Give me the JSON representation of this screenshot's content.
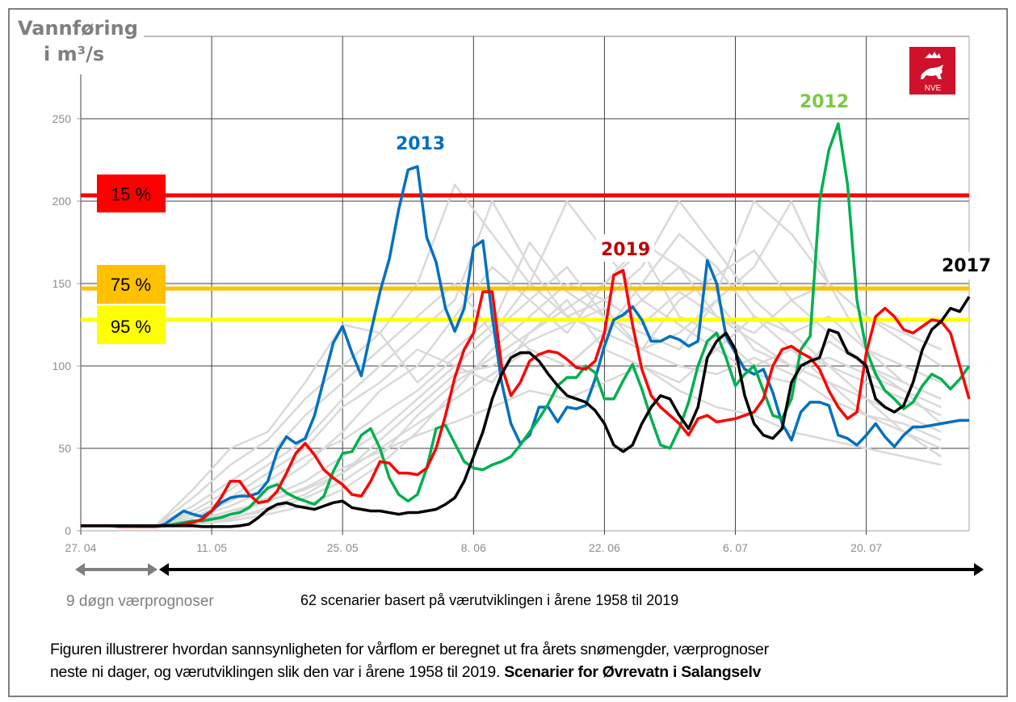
{
  "chart_data": {
    "type": "line",
    "ylabel_line1": "Vannføring",
    "ylabel_line2": "i m³/s",
    "ylim": [
      0,
      250
    ],
    "yticks": [
      "0",
      "50",
      "100",
      "150",
      "200",
      "250"
    ],
    "xtick_labels": [
      "27. 04",
      "11. 05",
      "25. 05",
      "8. 06",
      "22. 06",
      "6. 07",
      "20. 07"
    ],
    "grid": true,
    "x": [
      "27.04",
      "28.04",
      "29.04",
      "30.04",
      "01.05",
      "02.05",
      "03.05",
      "04.05",
      "05.05",
      "06.05",
      "07.05",
      "08.05",
      "09.05",
      "10.05",
      "11.05",
      "12.05",
      "13.05",
      "14.05",
      "15.05",
      "16.05",
      "17.05",
      "18.05",
      "19.05",
      "20.05",
      "21.05",
      "22.05",
      "23.05",
      "24.05",
      "25.05",
      "26.05",
      "27.05",
      "28.05",
      "29.05",
      "30.05",
      "31.05",
      "01.06",
      "02.06",
      "03.06",
      "04.06",
      "05.06",
      "06.06",
      "07.06",
      "08.06",
      "09.06",
      "10.06",
      "11.06",
      "12.06",
      "13.06",
      "14.06",
      "15.06",
      "16.06",
      "17.06",
      "18.06",
      "19.06",
      "20.06",
      "21.06",
      "22.06",
      "23.06",
      "24.06",
      "25.06",
      "26.06",
      "27.06",
      "28.06",
      "29.06",
      "30.06",
      "01.07",
      "02.07",
      "03.07",
      "04.07",
      "05.07",
      "06.07",
      "07.07",
      "08.07",
      "09.07",
      "10.07",
      "11.07",
      "12.07",
      "13.07",
      "14.07",
      "15.07",
      "16.07",
      "17.07",
      "18.07",
      "19.07",
      "20.07",
      "21.07",
      "22.07",
      "23.07",
      "24.07",
      "25.07",
      "26.07",
      "27.07",
      "28.07",
      "29.07",
      "30.07",
      "31.07"
    ],
    "thresholds": [
      {
        "label": "15 %",
        "value": 203.5,
        "color": "#ff0000"
      },
      {
        "label": "75 %",
        "value": 147,
        "color": "#ffc000"
      },
      {
        "label": "95 %",
        "value": 128,
        "color": "#ffff00"
      }
    ],
    "series": [
      {
        "name": "2013",
        "color": "#0070c0",
        "values": [
          3,
          3,
          3,
          3,
          3,
          3,
          2.5,
          2.5,
          2.5,
          4,
          8,
          12,
          10,
          8.5,
          12,
          17,
          20,
          21,
          21,
          23,
          30,
          48,
          57,
          53,
          56,
          70,
          92,
          114,
          124,
          108,
          94,
          120,
          145,
          165,
          195,
          219,
          221,
          178,
          163,
          135,
          121,
          135,
          172,
          176,
          130,
          90,
          65,
          53,
          58,
          75,
          75,
          66,
          75,
          74,
          76,
          92,
          112,
          128,
          131,
          136,
          128,
          115,
          115,
          118,
          116,
          112,
          115,
          164,
          150,
          118,
          108,
          98,
          95,
          98,
          84,
          65,
          55,
          72,
          78,
          78,
          76,
          58,
          56,
          52,
          58,
          65,
          57,
          51,
          58,
          63,
          63,
          64,
          65,
          66,
          67,
          67
        ]
      },
      {
        "name": "2012",
        "color": "#00b050",
        "values": [
          3,
          3,
          3,
          3,
          3,
          3,
          3,
          3,
          3,
          3,
          4,
          5,
          6,
          6,
          7,
          8,
          10,
          11,
          14,
          20,
          26,
          28,
          23,
          20,
          18,
          16,
          21,
          36,
          47,
          48,
          58,
          62,
          50,
          32,
          22,
          18,
          22,
          38,
          62,
          64,
          53,
          42,
          38,
          37,
          40,
          42,
          45,
          52,
          60,
          68,
          77,
          88,
          93,
          93,
          100,
          96,
          80,
          80,
          91,
          101,
          86,
          68,
          52,
          50,
          62,
          78,
          100,
          115,
          120,
          105,
          88,
          95,
          100,
          85,
          70,
          68,
          80,
          110,
          118,
          200,
          231,
          247,
          210,
          140,
          110,
          95,
          85,
          80,
          74,
          78,
          88,
          95,
          92,
          86,
          92,
          100
        ]
      },
      {
        "name": "2019",
        "color": "#ff0000",
        "values": [
          3,
          3,
          3,
          3,
          2.5,
          2.5,
          2.5,
          2.5,
          2.5,
          3,
          3,
          4,
          5,
          7,
          12,
          20,
          30,
          30,
          22,
          17,
          18,
          24,
          35,
          47,
          53,
          46,
          37,
          32,
          28,
          22,
          21,
          30,
          42,
          41,
          35,
          35,
          34,
          38,
          50,
          70,
          93,
          110,
          120,
          145,
          145,
          100,
          82,
          90,
          103,
          107,
          109,
          108,
          104,
          99,
          98,
          103,
          120,
          155,
          158,
          125,
          98,
          82,
          75,
          70,
          65,
          58,
          68,
          70,
          66,
          67,
          68,
          70,
          72,
          80,
          100,
          110,
          112,
          108,
          105,
          98,
          85,
          75,
          68,
          72,
          108,
          130,
          135,
          130,
          122,
          120,
          124,
          128,
          127,
          120,
          100,
          80
        ]
      },
      {
        "name": "2017",
        "color": "#000000",
        "values": [
          3,
          3,
          3,
          3,
          3,
          3,
          3,
          3,
          3,
          3,
          3,
          3,
          3,
          2.5,
          2.5,
          2.5,
          2.5,
          3,
          4,
          8,
          13,
          16,
          17,
          15,
          14,
          13,
          15,
          17,
          18,
          14,
          13,
          12,
          12,
          11,
          10,
          11,
          11,
          12,
          13,
          16,
          20,
          30,
          45,
          60,
          80,
          95,
          105,
          108,
          108,
          103,
          95,
          88,
          82,
          80,
          78,
          73,
          65,
          52,
          48,
          52,
          65,
          75,
          82,
          80,
          70,
          62,
          75,
          105,
          115,
          120,
          110,
          82,
          65,
          58,
          56,
          62,
          90,
          100,
          103,
          105,
          122,
          120,
          108,
          105,
          100,
          80,
          75,
          72,
          76,
          90,
          110,
          122,
          127,
          135,
          133,
          142
        ]
      }
    ],
    "scenario_x": [
      "27.04",
      "01.05",
      "05.05",
      "09.05",
      "13.05",
      "17.05",
      "21.05",
      "25.05",
      "29.05",
      "02.06",
      "06.06",
      "10.06",
      "14.06",
      "18.06",
      "22.06",
      "26.06",
      "30.06",
      "04.07",
      "08.07",
      "12.07",
      "16.07",
      "20.07",
      "24.07",
      "28.07"
    ],
    "scenarios": [
      [
        3,
        3,
        3,
        15,
        30,
        45,
        70,
        90,
        110,
        130,
        150,
        120,
        140,
        160,
        130,
        110,
        120,
        140,
        110,
        100,
        90,
        80,
        70,
        60
      ],
      [
        3,
        3,
        3,
        8,
        15,
        25,
        40,
        60,
        85,
        100,
        130,
        160,
        140,
        120,
        150,
        170,
        130,
        120,
        100,
        110,
        90,
        70,
        60,
        50
      ],
      [
        3,
        3,
        3,
        5,
        10,
        20,
        30,
        45,
        60,
        80,
        100,
        120,
        150,
        200,
        170,
        140,
        160,
        130,
        120,
        140,
        150,
        110,
        90,
        80
      ],
      [
        3,
        3,
        3,
        20,
        40,
        55,
        80,
        100,
        120,
        90,
        110,
        130,
        110,
        100,
        120,
        150,
        180,
        160,
        130,
        110,
        100,
        90,
        80,
        70
      ],
      [
        3,
        3,
        3,
        4,
        6,
        10,
        15,
        25,
        40,
        60,
        85,
        110,
        130,
        150,
        140,
        160,
        200,
        170,
        140,
        120,
        130,
        110,
        100,
        90
      ],
      [
        3,
        3,
        3,
        10,
        20,
        35,
        50,
        75,
        90,
        110,
        100,
        90,
        120,
        140,
        110,
        100,
        90,
        110,
        130,
        120,
        100,
        80,
        60,
        45
      ],
      [
        3,
        3,
        3,
        6,
        12,
        18,
        25,
        35,
        55,
        75,
        95,
        100,
        115,
        125,
        135,
        110,
        140,
        155,
        170,
        140,
        120,
        100,
        90,
        80
      ],
      [
        3,
        3,
        3,
        25,
        50,
        60,
        90,
        125,
        120,
        150,
        210,
        180,
        150,
        130,
        120,
        110,
        100,
        95,
        105,
        95,
        80,
        70,
        65,
        55
      ],
      [
        3,
        3,
        3,
        5,
        8,
        12,
        20,
        30,
        45,
        70,
        90,
        105,
        120,
        135,
        150,
        175,
        160,
        145,
        200,
        180,
        150,
        130,
        115,
        100
      ],
      [
        3,
        3,
        3,
        12,
        25,
        40,
        55,
        80,
        100,
        120,
        140,
        200,
        160,
        130,
        140,
        125,
        145,
        130,
        115,
        100,
        105,
        95,
        85,
        75
      ],
      [
        3,
        3,
        3,
        8,
        18,
        30,
        45,
        55,
        70,
        85,
        105,
        125,
        175,
        145,
        130,
        120,
        110,
        140,
        160,
        200,
        150,
        130,
        120,
        110
      ],
      [
        3,
        3,
        3,
        4,
        7,
        14,
        22,
        35,
        50,
        65,
        80,
        95,
        110,
        100,
        120,
        140,
        125,
        110,
        95,
        90,
        115,
        100,
        85,
        65
      ],
      [
        3,
        3,
        3,
        6,
        10,
        18,
        26,
        38,
        48,
        58,
        66,
        75,
        85,
        80,
        90,
        100,
        85,
        75,
        70,
        60,
        55,
        50,
        45,
        40
      ]
    ],
    "scenario_color": "#d9d9d9",
    "annotations": {
      "forecast_label": "9 døgn værprognoser",
      "scenarios_label": "62 scenarier basert på værutviklingen i årene 1958 til 2019"
    }
  },
  "logo": {
    "text": "NVE",
    "color": "#d0112b"
  },
  "caption": {
    "line1": "Figuren illustrerer hvordan sannsynligheten for vårflom er beregnet ut fra årets snømengder, værprognoser",
    "line2": "neste ni dager, og værutviklingen slik den var i årene 1958 til 2019.",
    "line2_bold": "Scenarier for Øvrevatn i Salangselv"
  }
}
